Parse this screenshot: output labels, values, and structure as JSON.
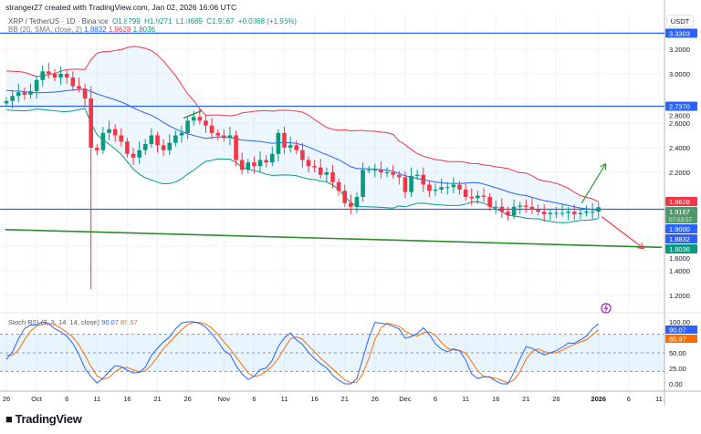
{
  "credit": "stranger27 created with TradingView.com, Jan 02, 2026 16:06 UTC",
  "symbol": {
    "title": "XRP / TetherUS · 1D · Binance",
    "open": "O1.8799",
    "high": "H1.9271",
    "low": "L1.8689",
    "close": "C1.9167",
    "change": "+0.0368 (+1.96%)"
  },
  "bb": {
    "label": "BB (20, SMA, close, 2)",
    "basis": "1.8832",
    "upper": "1.9628",
    "lower": "1.8036"
  },
  "stoch": {
    "label": "Stoch RSI (3, 3, 14, 14, close)",
    "k": "90.07",
    "d": "85.97"
  },
  "currency": "USDT",
  "logo": "TradingView",
  "colors": {
    "up": "#089981",
    "down": "#f23645",
    "basis": "#2962ff",
    "hline": "#2962ff",
    "trend": "#2e8b2e",
    "k": "#2962ff",
    "d": "#ff6d00"
  },
  "chart_data": {
    "type": "candlestick",
    "price_ticks": [
      "3.2000",
      "3.0000",
      "2.8000",
      "2.6000",
      "2.4000",
      "2.2000",
      "1.6000",
      "1.4000",
      "1.2000"
    ],
    "price_tick_values": [
      3.2,
      3.0,
      2.8,
      2.6,
      2.4,
      2.2,
      1.6,
      1.4,
      1.2
    ],
    "price_labels": [
      {
        "text": "3.3303",
        "value": 3.3303,
        "color": "#2962ff"
      },
      {
        "text": "2.7370",
        "value": 2.737,
        "color": "#2962ff"
      },
      {
        "text": "1.9628",
        "value": 1.9628,
        "color": "#f23645"
      },
      {
        "text": "1.9167",
        "sub": "07:53:57",
        "value": 1.9167,
        "color": "#4e9a6a"
      },
      {
        "text": "1.9000",
        "value": 1.9,
        "color": "#2962ff"
      },
      {
        "text": "1.8832",
        "value": 1.8832,
        "color": "#2962ff"
      },
      {
        "text": "1.8036",
        "value": 1.8036,
        "color": "#089981"
      }
    ],
    "horizontal_lines": [
      3.3303,
      2.737,
      1.9
    ],
    "trend_line": {
      "from": {
        "day": -0.2,
        "price": 1.735
      },
      "to": {
        "day": 108.5,
        "price": 1.59
      }
    },
    "small_line": {
      "from": {
        "day": 29.3,
        "price": 2.64
      },
      "to": {
        "day": 32.3,
        "price": 2.7
      }
    },
    "arrows": [
      {
        "color": "#2e9e2e",
        "from": {
          "day": 95.2,
          "price": 1.95
        },
        "to": {
          "day": 99.2,
          "price": 2.27
        }
      },
      {
        "color": "#f23645",
        "from": {
          "day": 98.5,
          "price": 1.84
        },
        "to": {
          "day": 105.5,
          "price": 1.58
        }
      }
    ],
    "time_ticks": [
      "26",
      "Oct",
      "6",
      "11",
      "16",
      "21",
      "26",
      "Nov",
      "6",
      "11",
      "16",
      "21",
      "26",
      "Dec",
      "6",
      "11",
      "16",
      "21",
      "26",
      "2026",
      "6",
      "11"
    ],
    "time_tick_days": [
      0,
      5,
      10,
      15,
      20,
      25,
      30,
      36,
      41,
      46,
      51,
      56,
      61,
      66,
      71,
      76,
      81,
      86,
      91,
      98,
      103,
      108
    ],
    "prior_closes": [
      2.95,
      2.98,
      3.02,
      3.05,
      3.0,
      2.95,
      2.9,
      2.92,
      2.97,
      3.02,
      3.05,
      3.08,
      3.05,
      3.0,
      2.95,
      2.9,
      2.88,
      2.92,
      2.98,
      3.02,
      3.0,
      2.96,
      2.92,
      2.88,
      2.85,
      2.8,
      2.78,
      2.75,
      2.76,
      2.8,
      2.84,
      2.86,
      2.83,
      2.8
    ],
    "closes": [
      2.78,
      2.82,
      2.85,
      2.83,
      2.86,
      2.95,
      3.02,
      3.0,
      2.97,
      3.0,
      2.97,
      2.9,
      2.88,
      2.8,
      2.4,
      2.38,
      2.52,
      2.55,
      2.5,
      2.45,
      2.35,
      2.32,
      2.38,
      2.43,
      2.5,
      2.42,
      2.38,
      2.44,
      2.5,
      2.52,
      2.62,
      2.65,
      2.62,
      2.58,
      2.52,
      2.5,
      2.48,
      2.5,
      2.3,
      2.22,
      2.28,
      2.25,
      2.3,
      2.28,
      2.35,
      2.52,
      2.4,
      2.42,
      2.38,
      2.3,
      2.25,
      2.24,
      2.18,
      2.2,
      2.12,
      2.05,
      1.95,
      1.92,
      2.0,
      2.22,
      2.22,
      2.22,
      2.2,
      2.2,
      2.18,
      2.16,
      2.04,
      2.17,
      2.18,
      2.1,
      2.05,
      2.06,
      2.08,
      2.08,
      2.1,
      2.06,
      2.0,
      1.99,
      2.01,
      2.0,
      1.92,
      1.92,
      1.88,
      1.85,
      1.92,
      1.93,
      1.92,
      1.9,
      1.88,
      1.86,
      1.87,
      1.87,
      1.87,
      1.88,
      1.86,
      1.87,
      1.8799,
      1.88,
      1.9167
    ],
    "wick_overrides": [
      {
        "index": 14,
        "low": 1.25,
        "high": 2.9
      }
    ],
    "stoch_ticks": [
      "100.00",
      "50.00",
      "25.00",
      "0.00"
    ],
    "stoch_tick_values": [
      100,
      50,
      25,
      0
    ],
    "stoch_bands": [
      80,
      50,
      20
    ]
  }
}
